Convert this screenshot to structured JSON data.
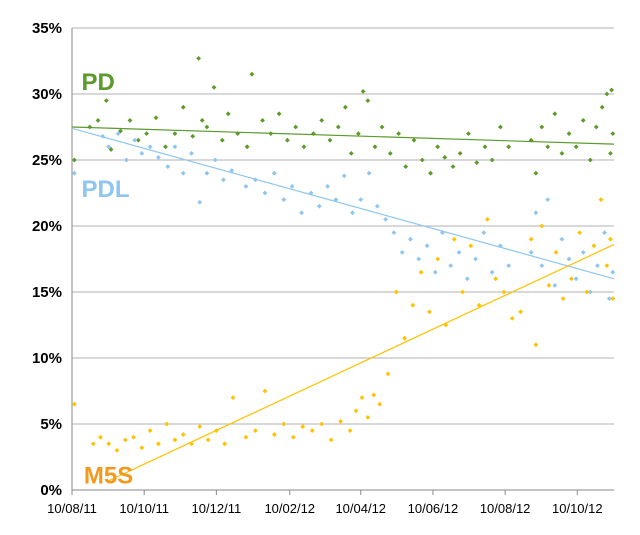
{
  "chart_data": {
    "type": "scatter",
    "x_axis": {
      "ticks": [
        "10/08/11",
        "10/10/11",
        "10/12/11",
        "10/02/12",
        "10/04/12",
        "10/06/12",
        "10/08/12",
        "10/10/12"
      ],
      "range": [
        "2011-08-10",
        "2012-11-10"
      ]
    },
    "y_axis": {
      "ticks": [
        "0%",
        "5%",
        "10%",
        "15%",
        "20%",
        "25%",
        "30%",
        "35%"
      ],
      "range": [
        0,
        35
      ],
      "unit": "%"
    },
    "grid": "horizontal",
    "series": [
      {
        "name": "PD",
        "color": "#5b9a2b",
        "trendline": {
          "from": [
            "2011-08-10",
            27.5
          ],
          "to": [
            "2012-11-10",
            26.2
          ]
        },
        "points": [
          [
            "2011-08-12",
            25.0
          ],
          [
            "2011-08-25",
            27.5
          ],
          [
            "2011-09-01",
            28.0
          ],
          [
            "2011-09-08",
            29.5
          ],
          [
            "2011-09-12",
            25.8
          ],
          [
            "2011-09-20",
            27.2
          ],
          [
            "2011-09-28",
            28.0
          ],
          [
            "2011-10-05",
            26.5
          ],
          [
            "2011-10-12",
            27.0
          ],
          [
            "2011-10-20",
            28.2
          ],
          [
            "2011-10-28",
            26.0
          ],
          [
            "2011-11-05",
            27.0
          ],
          [
            "2011-11-12",
            29.0
          ],
          [
            "2011-11-20",
            26.8
          ],
          [
            "2011-11-25",
            32.7
          ],
          [
            "2011-11-28",
            28.0
          ],
          [
            "2011-12-02",
            27.5
          ],
          [
            "2011-12-08",
            30.5
          ],
          [
            "2011-12-15",
            26.5
          ],
          [
            "2011-12-20",
            28.5
          ],
          [
            "2011-12-28",
            27.0
          ],
          [
            "2012-01-05",
            26.0
          ],
          [
            "2012-01-09",
            31.5
          ],
          [
            "2012-01-18",
            28.0
          ],
          [
            "2012-01-25",
            27.0
          ],
          [
            "2012-02-01",
            28.5
          ],
          [
            "2012-02-08",
            26.5
          ],
          [
            "2012-02-15",
            27.5
          ],
          [
            "2012-02-22",
            26.0
          ],
          [
            "2012-03-01",
            27.0
          ],
          [
            "2012-03-08",
            28.0
          ],
          [
            "2012-03-15",
            26.5
          ],
          [
            "2012-03-22",
            27.5
          ],
          [
            "2012-03-28",
            29.0
          ],
          [
            "2012-04-02",
            25.5
          ],
          [
            "2012-04-08",
            27.0
          ],
          [
            "2012-04-12",
            30.2
          ],
          [
            "2012-04-16",
            29.5
          ],
          [
            "2012-04-22",
            26.0
          ],
          [
            "2012-04-28",
            27.5
          ],
          [
            "2012-05-05",
            25.5
          ],
          [
            "2012-05-12",
            27.0
          ],
          [
            "2012-05-18",
            24.5
          ],
          [
            "2012-05-25",
            26.5
          ],
          [
            "2012-06-01",
            25.0
          ],
          [
            "2012-06-08",
            24.0
          ],
          [
            "2012-06-14",
            26.0
          ],
          [
            "2012-06-20",
            25.2
          ],
          [
            "2012-06-27",
            24.5
          ],
          [
            "2012-07-03",
            25.5
          ],
          [
            "2012-07-10",
            27.0
          ],
          [
            "2012-07-17",
            24.8
          ],
          [
            "2012-07-24",
            26.0
          ],
          [
            "2012-07-30",
            25.0
          ],
          [
            "2012-08-06",
            27.5
          ],
          [
            "2012-08-13",
            26.0
          ],
          [
            "2012-09-01",
            26.5
          ],
          [
            "2012-09-05",
            24.0
          ],
          [
            "2012-09-10",
            27.5
          ],
          [
            "2012-09-15",
            26.0
          ],
          [
            "2012-09-21",
            28.5
          ],
          [
            "2012-09-27",
            25.5
          ],
          [
            "2012-10-03",
            27.0
          ],
          [
            "2012-10-09",
            26.0
          ],
          [
            "2012-10-15",
            28.0
          ],
          [
            "2012-10-21",
            25.0
          ],
          [
            "2012-10-26",
            27.5
          ],
          [
            "2012-10-31",
            29.0
          ],
          [
            "2012-11-04",
            30.0
          ],
          [
            "2012-11-07",
            25.5
          ],
          [
            "2012-11-08",
            30.3
          ],
          [
            "2012-11-09",
            27.0
          ]
        ]
      },
      {
        "name": "PDL",
        "color": "#8ec6f0",
        "trendline": {
          "from": [
            "2011-08-10",
            27.4
          ],
          "to": [
            "2012-11-10",
            16.0
          ]
        },
        "points": [
          [
            "2011-08-12",
            24.0
          ],
          [
            "2011-09-05",
            26.8
          ],
          [
            "2011-09-10",
            26.0
          ],
          [
            "2011-09-18",
            27.0
          ],
          [
            "2011-09-25",
            25.0
          ],
          [
            "2011-10-02",
            26.5
          ],
          [
            "2011-10-08",
            25.5
          ],
          [
            "2011-10-15",
            26.0
          ],
          [
            "2011-10-22",
            25.2
          ],
          [
            "2011-10-30",
            24.5
          ],
          [
            "2011-11-05",
            26.0
          ],
          [
            "2011-11-12",
            24.0
          ],
          [
            "2011-11-19",
            25.5
          ],
          [
            "2011-11-26",
            21.8
          ],
          [
            "2011-12-02",
            24.0
          ],
          [
            "2011-12-09",
            25.0
          ],
          [
            "2011-12-16",
            23.5
          ],
          [
            "2011-12-23",
            24.2
          ],
          [
            "2012-01-04",
            23.0
          ],
          [
            "2012-01-12",
            23.5
          ],
          [
            "2012-01-20",
            22.5
          ],
          [
            "2012-01-28",
            24.0
          ],
          [
            "2012-02-05",
            22.0
          ],
          [
            "2012-02-12",
            23.0
          ],
          [
            "2012-02-20",
            21.0
          ],
          [
            "2012-02-28",
            22.5
          ],
          [
            "2012-03-06",
            21.5
          ],
          [
            "2012-03-13",
            23.0
          ],
          [
            "2012-03-20",
            22.0
          ],
          [
            "2012-03-27",
            23.8
          ],
          [
            "2012-04-03",
            21.0
          ],
          [
            "2012-04-10",
            22.0
          ],
          [
            "2012-04-17",
            24.0
          ],
          [
            "2012-04-24",
            21.5
          ],
          [
            "2012-05-01",
            20.5
          ],
          [
            "2012-05-08",
            19.5
          ],
          [
            "2012-05-15",
            18.0
          ],
          [
            "2012-05-22",
            19.0
          ],
          [
            "2012-05-29",
            17.5
          ],
          [
            "2012-06-05",
            18.5
          ],
          [
            "2012-06-12",
            16.5
          ],
          [
            "2012-06-18",
            19.5
          ],
          [
            "2012-06-25",
            17.0
          ],
          [
            "2012-07-02",
            18.0
          ],
          [
            "2012-07-09",
            16.0
          ],
          [
            "2012-07-16",
            17.5
          ],
          [
            "2012-07-23",
            19.5
          ],
          [
            "2012-07-30",
            16.5
          ],
          [
            "2012-08-06",
            18.5
          ],
          [
            "2012-08-13",
            17.0
          ],
          [
            "2012-09-01",
            18.0
          ],
          [
            "2012-09-05",
            21.0
          ],
          [
            "2012-09-10",
            17.0
          ],
          [
            "2012-09-15",
            22.0
          ],
          [
            "2012-09-21",
            15.5
          ],
          [
            "2012-09-27",
            19.0
          ],
          [
            "2012-10-03",
            17.5
          ],
          [
            "2012-10-09",
            16.0
          ],
          [
            "2012-10-15",
            18.0
          ],
          [
            "2012-10-21",
            15.0
          ],
          [
            "2012-10-27",
            17.0
          ],
          [
            "2012-11-02",
            19.5
          ],
          [
            "2012-11-06",
            14.5
          ],
          [
            "2012-11-09",
            16.5
          ]
        ]
      },
      {
        "name": "M5S",
        "color": "#ffc200",
        "trendline": {
          "from": [
            "2011-09-10",
            0.7
          ],
          "to": [
            "2012-11-10",
            18.6
          ]
        },
        "points": [
          [
            "2011-08-12",
            6.5
          ],
          [
            "2011-08-28",
            3.5
          ],
          [
            "2011-09-03",
            4.0
          ],
          [
            "2011-09-10",
            3.5
          ],
          [
            "2011-09-17",
            3.0
          ],
          [
            "2011-09-24",
            3.8
          ],
          [
            "2011-10-01",
            4.0
          ],
          [
            "2011-10-08",
            3.2
          ],
          [
            "2011-10-15",
            4.5
          ],
          [
            "2011-10-22",
            3.5
          ],
          [
            "2011-10-29",
            5.0
          ],
          [
            "2011-11-05",
            3.8
          ],
          [
            "2011-11-12",
            4.2
          ],
          [
            "2011-11-19",
            3.5
          ],
          [
            "2011-11-26",
            4.8
          ],
          [
            "2011-12-03",
            3.8
          ],
          [
            "2011-12-10",
            4.5
          ],
          [
            "2011-12-17",
            3.5
          ],
          [
            "2011-12-24",
            7.0
          ],
          [
            "2012-01-04",
            4.0
          ],
          [
            "2012-01-12",
            4.5
          ],
          [
            "2012-01-20",
            7.5
          ],
          [
            "2012-01-28",
            4.2
          ],
          [
            "2012-02-05",
            5.0
          ],
          [
            "2012-02-13",
            4.0
          ],
          [
            "2012-02-21",
            4.8
          ],
          [
            "2012-02-29",
            4.5
          ],
          [
            "2012-03-08",
            5.0
          ],
          [
            "2012-03-16",
            3.8
          ],
          [
            "2012-03-24",
            5.2
          ],
          [
            "2012-04-01",
            4.5
          ],
          [
            "2012-04-06",
            6.0
          ],
          [
            "2012-04-11",
            7.0
          ],
          [
            "2012-04-16",
            5.5
          ],
          [
            "2012-04-21",
            7.2
          ],
          [
            "2012-04-26",
            6.5
          ],
          [
            "2012-05-03",
            8.8
          ],
          [
            "2012-05-10",
            15.0
          ],
          [
            "2012-05-17",
            11.5
          ],
          [
            "2012-05-24",
            14.0
          ],
          [
            "2012-05-31",
            16.5
          ],
          [
            "2012-06-07",
            13.5
          ],
          [
            "2012-06-14",
            17.5
          ],
          [
            "2012-06-21",
            12.5
          ],
          [
            "2012-06-28",
            19.0
          ],
          [
            "2012-07-05",
            15.0
          ],
          [
            "2012-07-12",
            18.5
          ],
          [
            "2012-07-19",
            14.0
          ],
          [
            "2012-07-26",
            20.5
          ],
          [
            "2012-08-02",
            16.0
          ],
          [
            "2012-08-09",
            15.0
          ],
          [
            "2012-08-16",
            13.0
          ],
          [
            "2012-08-23",
            13.5
          ],
          [
            "2012-09-01",
            19.0
          ],
          [
            "2012-09-05",
            11.0
          ],
          [
            "2012-09-10",
            20.0
          ],
          [
            "2012-09-16",
            15.5
          ],
          [
            "2012-09-22",
            18.0
          ],
          [
            "2012-09-28",
            14.5
          ],
          [
            "2012-10-05",
            16.0
          ],
          [
            "2012-10-12",
            19.5
          ],
          [
            "2012-10-18",
            15.0
          ],
          [
            "2012-10-24",
            18.5
          ],
          [
            "2012-10-30",
            22.0
          ],
          [
            "2012-11-04",
            17.0
          ],
          [
            "2012-11-07",
            19.0
          ],
          [
            "2012-11-09",
            14.5
          ]
        ]
      }
    ]
  }
}
